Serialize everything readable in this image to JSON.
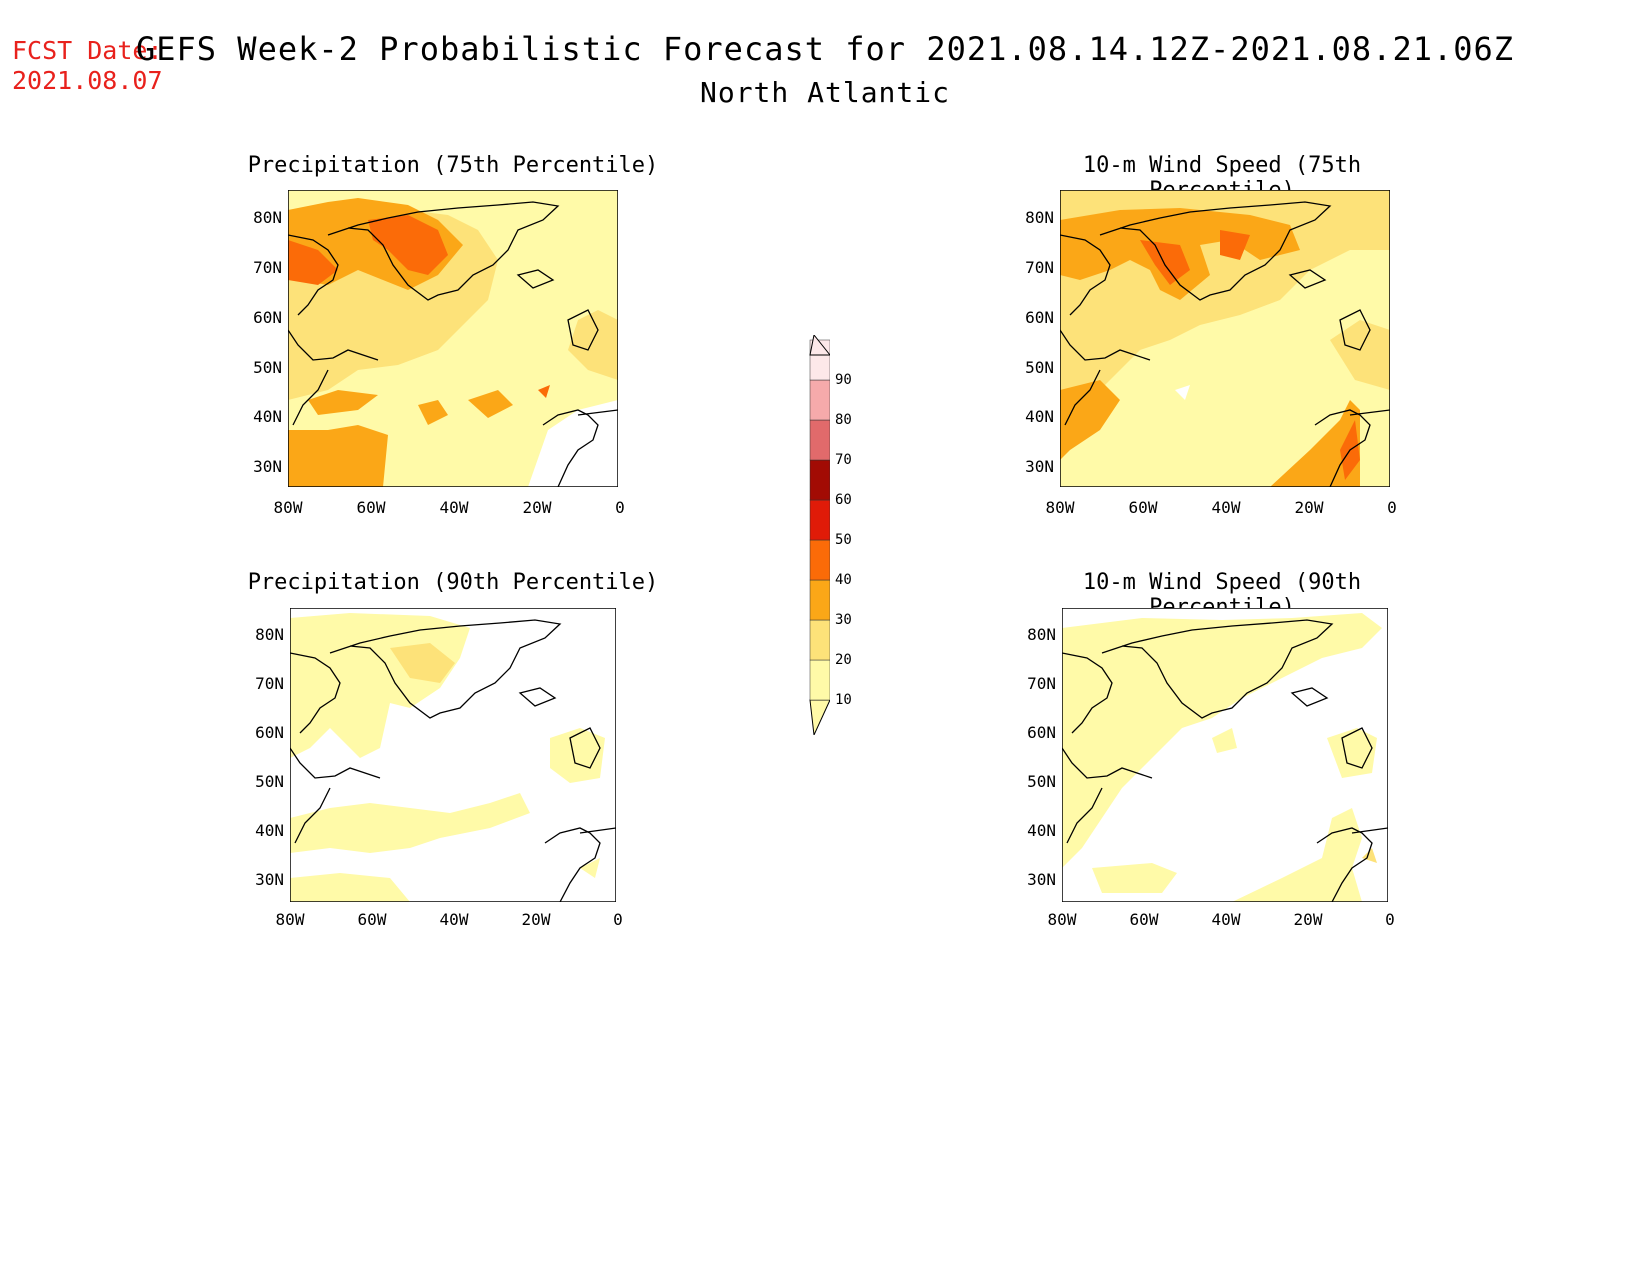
{
  "forecast_date": {
    "label": "FCST Date:",
    "value": "2021.08.07"
  },
  "title": "GEFS Week-2 Probabilistic Forecast for 2021.08.14.12Z-2021.08.21.06Z",
  "subtitle": "North Atlantic",
  "panels": [
    {
      "title": "Precipitation (75th Percentile)"
    },
    {
      "title": "10-m Wind Speed (75th Percentile)"
    },
    {
      "title": "Precipitation (90th Percentile)"
    },
    {
      "title": "10-m Wind Speed (90th Percentile)"
    }
  ],
  "axes": {
    "lat_labels": [
      "80N",
      "70N",
      "60N",
      "50N",
      "40N",
      "30N"
    ],
    "lon_labels": [
      "80W",
      "60W",
      "40W",
      "20W",
      "0"
    ]
  },
  "colorbar": {
    "levels": [
      "10",
      "20",
      "30",
      "40",
      "50",
      "60",
      "70",
      "80",
      "90"
    ],
    "colors": [
      "#fffaa8",
      "#fde279",
      "#fba717",
      "#fb6b08",
      "#e01b08",
      "#a20b04",
      "#e16a6b",
      "#f6aaab",
      "#fde8e9"
    ]
  },
  "palette": {
    "coast": "#000000",
    "title_red": "#e8211c"
  }
}
